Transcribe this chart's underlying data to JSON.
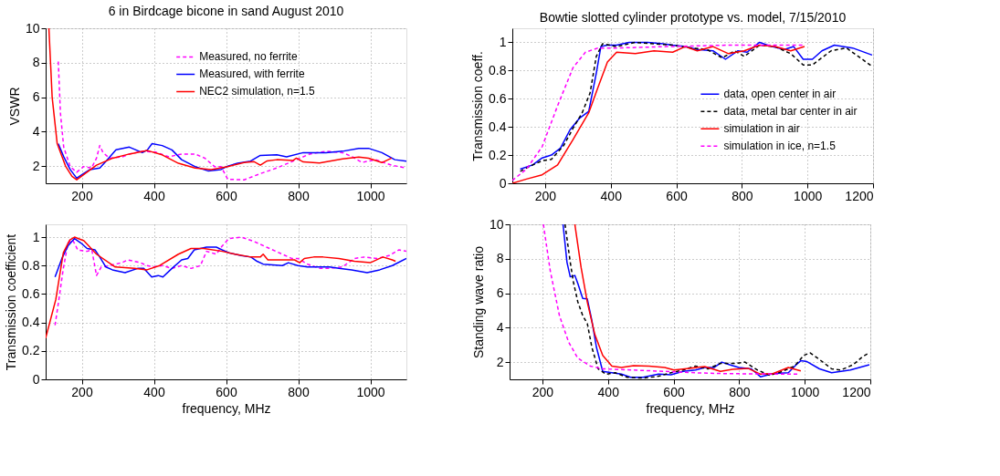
{
  "chart_data": [
    {
      "type": "line",
      "title": "6 in Birdcage bicone in sand August 2010",
      "ylabel": "VSWR",
      "xlim": [
        100,
        1100
      ],
      "xticks": [
        200,
        400,
        600,
        800,
        1000
      ],
      "ylim": [
        1,
        10
      ],
      "yticks": [
        2,
        4,
        6,
        8,
        10
      ],
      "grid": true,
      "legend": "top right",
      "series": [
        {
          "name": "Measured, no ferrite",
          "color": "#ff00ff",
          "line_style": "dashed",
          "x": [
            135,
            141,
            150,
            168,
            186,
            205,
            227,
            241,
            250,
            259,
            277,
            314,
            332,
            368,
            405,
            441,
            477,
            514,
            541,
            568,
            586,
            605,
            650,
            695,
            741,
            786,
            832,
            877,
            923,
            950,
            977,
            1014,
            1059,
            1100
          ],
          "values": [
            8.07,
            5.06,
            3.1,
            1.97,
            1.64,
            1.97,
            1.89,
            2.46,
            3.19,
            2.78,
            2.46,
            2.54,
            2.7,
            2.86,
            2.81,
            2.54,
            2.7,
            2.7,
            2.46,
            1.97,
            1.97,
            1.23,
            1.2,
            1.56,
            1.89,
            2.29,
            2.7,
            2.86,
            2.78,
            2.54,
            2.21,
            2.37,
            2.05,
            1.89
          ]
        },
        {
          "name": "Measured, with ferrite",
          "color": "#0000ff",
          "line_style": "solid",
          "x": [
            135,
            150,
            168,
            186,
            205,
            223,
            250,
            268,
            295,
            332,
            350,
            368,
            382,
            395,
            423,
            450,
            477,
            514,
            550,
            586,
            605,
            632,
            668,
            695,
            741,
            768,
            814,
            877,
            923,
            968,
            995,
            1032,
            1068,
            1100
          ],
          "values": [
            3.3,
            2.54,
            1.8,
            1.3,
            1.56,
            1.8,
            1.89,
            2.3,
            2.94,
            3.1,
            2.94,
            2.78,
            2.94,
            3.3,
            3.19,
            2.94,
            2.37,
            1.97,
            1.72,
            1.8,
            2.0,
            2.16,
            2.29,
            2.62,
            2.65,
            2.54,
            2.78,
            2.78,
            2.86,
            3.03,
            3.03,
            2.78,
            2.37,
            2.29
          ]
        },
        {
          "name": "NEC2 simulation, n=1.5",
          "color": "#ff0000",
          "line_style": "solid",
          "x": [
            109,
            118,
            132,
            155,
            173,
            186,
            205,
            241,
            286,
            332,
            382,
            423,
            468,
            514,
            559,
            605,
            650,
            677,
            695,
            714,
            741,
            786,
            795,
            814,
            859,
            923,
            968,
            995,
            1032,
            1059
          ],
          "values": [
            10,
            6.0,
            3.3,
            2.0,
            1.4,
            1.2,
            1.5,
            2.05,
            2.46,
            2.7,
            2.9,
            2.65,
            2.16,
            1.89,
            1.8,
            1.97,
            2.2,
            2.26,
            2.05,
            2.3,
            2.37,
            2.33,
            2.46,
            2.24,
            2.18,
            2.42,
            2.52,
            2.46,
            2.2,
            2.46
          ]
        }
      ]
    },
    {
      "type": "line",
      "title": "Bowtie slotted cylinder prototype vs. model, 7/15/2010",
      "ylabel": "Transmission coeff.",
      "xlim": [
        100,
        1200
      ],
      "xticks": [
        200,
        400,
        600,
        800,
        1000,
        1200
      ],
      "ylim": [
        0,
        1.1
      ],
      "yticks": [
        0,
        0.2,
        0.4,
        0.6,
        0.8,
        1
      ],
      "grid": true,
      "legend": "right",
      "series": [
        {
          "name": "data, open center in air",
          "color": "#0000ff",
          "line_style": "solid",
          "x": [
            124,
            162,
            191,
            219,
            247,
            276,
            304,
            333,
            356,
            370,
            390,
            418,
            456,
            513,
            560,
            589,
            627,
            664,
            712,
            750,
            788,
            816,
            854,
            892,
            930,
            958,
            987,
            1015,
            1044,
            1082,
            1138,
            1197
          ],
          "values": [
            0.1,
            0.13,
            0.18,
            0.2,
            0.25,
            0.38,
            0.46,
            0.51,
            0.78,
            0.97,
            0.98,
            0.98,
            1.0,
            1.0,
            0.99,
            0.98,
            0.97,
            0.95,
            0.94,
            0.88,
            0.94,
            0.93,
            1.0,
            0.97,
            0.95,
            0.97,
            0.88,
            0.88,
            0.94,
            0.98,
            0.96,
            0.91
          ]
        },
        {
          "name": "data, metal bar center in air",
          "color": "#000000",
          "line_style": "dashed",
          "x": [
            124,
            162,
            191,
            219,
            257,
            285,
            313,
            337,
            356,
            375,
            418,
            475,
            532,
            589,
            645,
            693,
            740,
            778,
            807,
            854,
            901,
            949,
            987,
            1015,
            1072,
            1119,
            1167,
            1197
          ],
          "values": [
            0.085,
            0.13,
            0.16,
            0.17,
            0.27,
            0.39,
            0.5,
            0.64,
            0.9,
            0.99,
            0.97,
            1.0,
            0.99,
            0.98,
            0.96,
            0.95,
            0.89,
            0.94,
            0.9,
            0.98,
            0.97,
            0.92,
            0.84,
            0.84,
            0.94,
            0.96,
            0.88,
            0.83
          ]
        },
        {
          "name": "simulation in air",
          "color": "#ff0000",
          "line_style": "solid",
          "x": [
            100,
            143,
            191,
            238,
            285,
            333,
            361,
            390,
            418,
            475,
            532,
            589,
            627,
            664,
            712,
            759,
            807,
            854,
            901,
            949,
            991
          ],
          "values": [
            0.0,
            0.03,
            0.06,
            0.13,
            0.31,
            0.5,
            0.68,
            0.86,
            0.93,
            0.92,
            0.94,
            0.93,
            0.97,
            0.94,
            0.97,
            0.92,
            0.94,
            0.98,
            0.97,
            0.94,
            0.97
          ]
        },
        {
          "name": "simulation in ice, n=1.5",
          "color": "#ff00ff",
          "line_style": "dashed",
          "x": [
            100,
            143,
            191,
            238,
            285,
            323,
            361,
            418,
            570,
            759,
            991
          ],
          "values": [
            0.02,
            0.1,
            0.26,
            0.55,
            0.82,
            0.93,
            0.96,
            0.96,
            0.97,
            0.98,
            0.98
          ]
        }
      ]
    },
    {
      "type": "line",
      "ylabel": "Transmission coefficient",
      "xlabel": "frequency, MHz",
      "xlim": [
        100,
        1100
      ],
      "xticks": [
        200,
        400,
        600,
        800,
        1000
      ],
      "ylim": [
        0,
        1.09
      ],
      "yticks": [
        0,
        0.2,
        0.4,
        0.6,
        0.8,
        1
      ],
      "grid": true,
      "series": [
        {
          "color": "#ff00ff",
          "line_style": "dashed",
          "x": [
            126,
            136,
            149,
            162,
            175,
            189,
            215,
            228,
            241,
            254,
            276,
            311,
            328,
            363,
            381,
            398,
            424,
            450,
            477,
            503,
            529,
            546,
            573,
            590,
            608,
            642,
            677,
            712,
            756,
            782,
            799,
            826,
            860,
            887,
            922,
            956,
            983,
            1018,
            1052,
            1079,
            1100
          ],
          "values": [
            0.38,
            0.55,
            0.78,
            0.96,
            0.98,
            0.91,
            0.9,
            0.91,
            0.73,
            0.79,
            0.8,
            0.82,
            0.84,
            0.82,
            0.8,
            0.79,
            0.8,
            0.78,
            0.8,
            0.78,
            0.8,
            0.9,
            0.88,
            0.94,
            0.99,
            1.0,
            0.97,
            0.93,
            0.88,
            0.85,
            0.85,
            0.81,
            0.78,
            0.78,
            0.79,
            0.85,
            0.86,
            0.85,
            0.87,
            0.91,
            0.9
          ]
        },
        {
          "color": "#0000ff",
          "line_style": "solid",
          "x": [
            126,
            145,
            162,
            180,
            197,
            215,
            237,
            250,
            267,
            285,
            320,
            355,
            372,
            394,
            412,
            425,
            450,
            477,
            494,
            512,
            546,
            573,
            590,
            608,
            642,
            669,
            686,
            703,
            756,
            773,
            799,
            826,
            887,
            913,
            948,
            991,
            1026,
            1061,
            1100
          ],
          "values": [
            0.72,
            0.85,
            0.94,
            0.99,
            0.96,
            0.92,
            0.91,
            0.86,
            0.79,
            0.77,
            0.75,
            0.78,
            0.78,
            0.72,
            0.73,
            0.72,
            0.78,
            0.84,
            0.85,
            0.91,
            0.93,
            0.93,
            0.91,
            0.89,
            0.87,
            0.86,
            0.83,
            0.81,
            0.8,
            0.82,
            0.8,
            0.79,
            0.79,
            0.78,
            0.77,
            0.75,
            0.77,
            0.8,
            0.85
          ]
        },
        {
          "color": "#ff0000",
          "line_style": "solid",
          "x": [
            100,
            128,
            149,
            167,
            180,
            206,
            241,
            293,
            346,
            381,
            416,
            468,
            503,
            538,
            590,
            625,
            669,
            695,
            703,
            716,
            755,
            790,
            804,
            817,
            843,
            869,
            913,
            956,
            1000,
            1026,
            1035,
            1061,
            1070
          ],
          "values": [
            0.29,
            0.56,
            0.89,
            0.98,
            1.0,
            0.975,
            0.88,
            0.79,
            0.78,
            0.77,
            0.8,
            0.88,
            0.92,
            0.92,
            0.9,
            0.88,
            0.86,
            0.86,
            0.88,
            0.84,
            0.84,
            0.84,
            0.82,
            0.85,
            0.86,
            0.86,
            0.85,
            0.83,
            0.82,
            0.85,
            0.86,
            0.84,
            0.83
          ]
        }
      ]
    },
    {
      "type": "line",
      "ylabel": "Standing wave ratio",
      "xlabel": "frequency, MHz",
      "xlim": [
        100,
        1200
      ],
      "xticks": [
        200,
        400,
        600,
        800,
        1000,
        1200
      ],
      "ylim": [
        1,
        10
      ],
      "yticks": [
        2,
        4,
        6,
        8,
        10
      ],
      "grid": true,
      "series": [
        {
          "color": "#0000ff",
          "line_style": "solid",
          "x": [
            263,
            275,
            285,
            299,
            308,
            323,
            337,
            351,
            365,
            384,
            412,
            441,
            469,
            507,
            554,
            592,
            629,
            667,
            695,
            724,
            747,
            771,
            799,
            837,
            865,
            903,
            950,
            974,
            988,
            1007,
            1045,
            1082,
            1139,
            1197
          ],
          "values": [
            10,
            7.8,
            6.95,
            7.03,
            6.57,
            5.7,
            5.67,
            4.4,
            2.85,
            1.46,
            1.38,
            1.3,
            1.12,
            1.12,
            1.3,
            1.26,
            1.46,
            1.54,
            1.69,
            1.69,
            2.0,
            1.85,
            1.69,
            1.61,
            1.15,
            1.33,
            1.38,
            1.85,
            2.08,
            2.03,
            1.61,
            1.38,
            1.54,
            1.85
          ]
        },
        {
          "color": "#000000",
          "line_style": "dashed",
          "x": [
            269,
            285,
            294,
            308,
            323,
            337,
            351,
            370,
            394,
            422,
            459,
            507,
            554,
            592,
            629,
            667,
            705,
            743,
            790,
            818,
            856,
            894,
            931,
            969,
            997,
            1016,
            1045,
            1082,
            1110,
            1148,
            1176,
            1197
          ],
          "values": [
            10,
            7.8,
            6.7,
            5.5,
            4.7,
            4.24,
            2.85,
            1.61,
            1.3,
            1.38,
            1.12,
            1.07,
            1.18,
            1.38,
            1.54,
            1.77,
            1.61,
            1.92,
            1.92,
            2.0,
            1.54,
            1.23,
            1.46,
            1.77,
            2.39,
            2.54,
            2.15,
            1.61,
            1.54,
            1.85,
            2.31,
            2.54
          ]
        },
        {
          "color": "#ff0000",
          "line_style": "solid",
          "x": [
            299,
            318,
            337,
            360,
            384,
            412,
            441,
            478,
            525,
            573,
            601,
            648,
            695,
            743,
            780,
            827,
            865,
            903,
            950,
            988
          ],
          "values": [
            10,
            7.5,
            5.48,
            3.6,
            2.39,
            1.77,
            1.69,
            1.8,
            1.77,
            1.69,
            1.54,
            1.64,
            1.74,
            1.46,
            1.58,
            1.64,
            1.3,
            1.33,
            1.69,
            1.49
          ]
        },
        {
          "color": "#ff00ff",
          "line_style": "dashed",
          "x": [
            203,
            224,
            252,
            280,
            308,
            346,
            384,
            478,
            573,
            667,
            761,
            978
          ],
          "values": [
            10,
            7.3,
            4.7,
            3.16,
            2.23,
            1.77,
            1.61,
            1.54,
            1.46,
            1.38,
            1.33,
            1.3
          ]
        }
      ]
    }
  ]
}
